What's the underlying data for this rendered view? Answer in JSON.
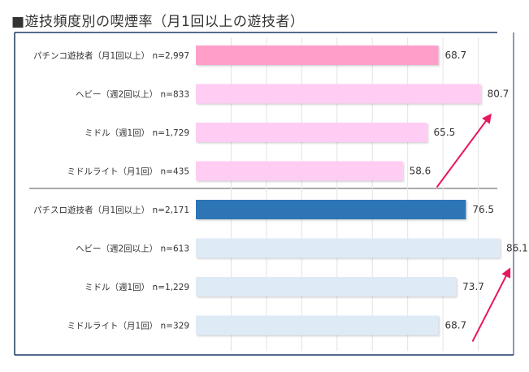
{
  "title": "■遊技頻度別の喫煙率（月1回以上の遊技者）",
  "chart_data": {
    "type": "bar",
    "orientation": "horizontal",
    "title": "■遊技頻度別の喫煙率（月1回以上の遊技者）",
    "xlim": [
      0,
      90
    ],
    "grid": true,
    "groups": [
      {
        "name": "パチンコ",
        "categories": [
          "パチンコ遊技者（月1回以上） n=2,997",
          "ヘビー（週2回以上） n=833",
          "ミドル（週1回） n=1,729",
          "ミドルライト（月1回） n=435"
        ],
        "values": [
          68.7,
          80.7,
          65.5,
          58.6
        ],
        "value_labels": [
          "68.7",
          "80.7",
          "65.5",
          "58.6"
        ],
        "colors": [
          "#ff9fc9",
          "#ffccf4",
          "#ffccf4",
          "#ffccf4"
        ],
        "arrow_color": "#e8185f"
      },
      {
        "name": "パチスロ",
        "categories": [
          "パチスロ遊技者（月1回以上） n=2,171",
          "ヘビー（週2回以上） n=613",
          "ミドル（週1回） n=1,229",
          "ミドルライト（月1回） n=329"
        ],
        "values": [
          76.5,
          86.1,
          73.7,
          68.7
        ],
        "value_labels": [
          "76.5",
          "86.1",
          "73.7",
          "68.7"
        ],
        "colors": [
          "#2e75b6",
          "#deebf7",
          "#deebf7",
          "#deebf7"
        ],
        "arrow_color": "#e8185f"
      }
    ]
  }
}
